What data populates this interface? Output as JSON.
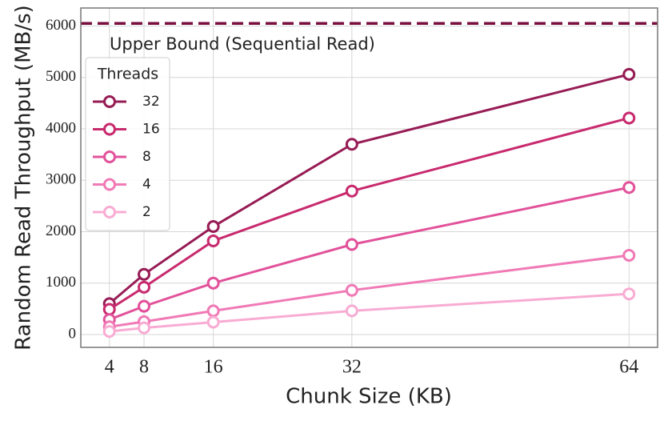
{
  "chart_data": {
    "type": "line",
    "x_label": "Chunk Size (KB)",
    "y_label": "Random Read Throughput (MB/s)",
    "x": [
      4,
      8,
      16,
      32,
      64
    ],
    "xlim": [
      0.7,
      67.3
    ],
    "xticks": [
      4,
      8,
      16,
      32,
      64
    ],
    "ylim": [
      -250,
      6350
    ],
    "yticks": [
      0,
      1000,
      2000,
      3000,
      4000,
      5000,
      6000
    ],
    "grid": true,
    "legend_title": "Threads",
    "legend_position": "upper-left",
    "reference_line": {
      "value": 6050,
      "label": "Upper Bound (Sequential Read)",
      "color": "#7a0f3f"
    },
    "series": [
      {
        "name": "32",
        "color": "#971c55",
        "values": [
          600,
          1170,
          2100,
          3700,
          5060
        ]
      },
      {
        "name": "16",
        "color": "#c82a6e",
        "values": [
          490,
          920,
          1820,
          2790,
          4210
        ]
      },
      {
        "name": "8",
        "color": "#e2529a",
        "values": [
          290,
          550,
          1000,
          1750,
          2860
        ]
      },
      {
        "name": "4",
        "color": "#f07ab6",
        "values": [
          150,
          250,
          460,
          860,
          1540
        ]
      },
      {
        "name": "2",
        "color": "#f8acd3",
        "values": [
          60,
          130,
          240,
          460,
          790
        ]
      }
    ]
  }
}
